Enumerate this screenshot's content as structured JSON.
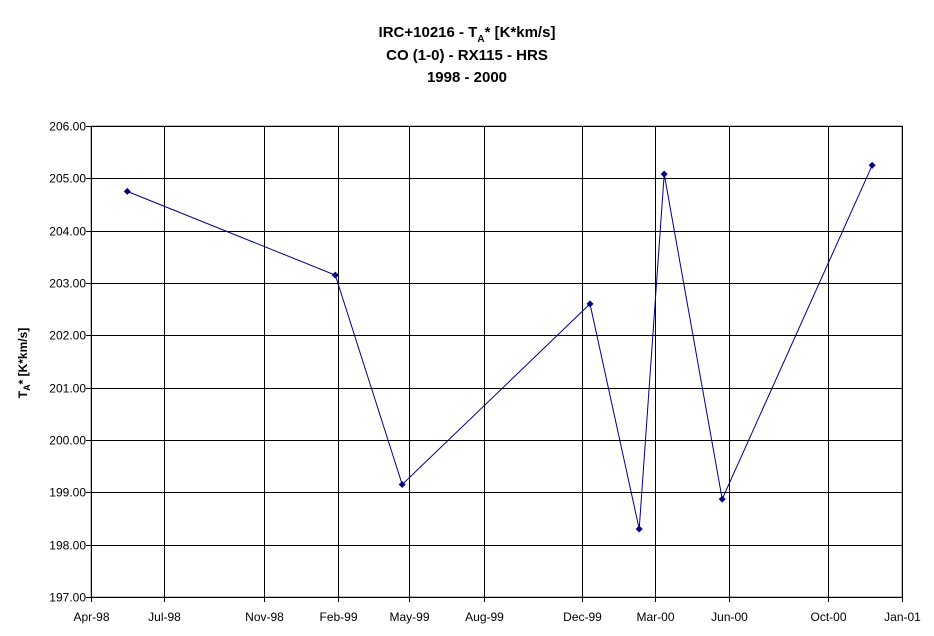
{
  "chart_data": {
    "type": "line",
    "title": [
      "IRC+10216 - T",
      "A",
      "* [K*km/s]"
    ],
    "subtitle": [
      "CO (1-0) - RX115 - HRS",
      "1998 - 2000"
    ],
    "ylabel": [
      "T",
      "A",
      "* [K*km/s]"
    ],
    "xlabel": "",
    "xlim": [
      "1998-04-01",
      "2001-01-01"
    ],
    "ylim": [
      197.0,
      206.0
    ],
    "x_ticks": [
      {
        "date": "1998-04-01",
        "label": "Apr-98"
      },
      {
        "date": "1998-07-01",
        "label": "Jul-98"
      },
      {
        "date": "1998-11-01",
        "label": "Nov-98"
      },
      {
        "date": "1999-02-01",
        "label": "Feb-99"
      },
      {
        "date": "1999-05-01",
        "label": "May-99"
      },
      {
        "date": "1999-08-01",
        "label": "Aug-99"
      },
      {
        "date": "1999-12-01",
        "label": "Dec-99"
      },
      {
        "date": "2000-03-01",
        "label": "Mar-00"
      },
      {
        "date": "2000-06-01",
        "label": "Jun-00"
      },
      {
        "date": "2000-10-01",
        "label": "Oct-00"
      },
      {
        "date": "2001-01-01",
        "label": "Jan-01"
      }
    ],
    "y_ticks": [
      197.0,
      198.0,
      199.0,
      200.0,
      201.0,
      202.0,
      203.0,
      204.0,
      205.0,
      206.0
    ],
    "y_tick_labels": [
      "197.00",
      "198.00",
      "199.00",
      "200.00",
      "201.00",
      "202.00",
      "203.00",
      "204.00",
      "205.00",
      "206.00"
    ],
    "grid": true,
    "legend": "none",
    "series": [
      {
        "color": "#000080",
        "marker": "diamond",
        "points": [
          {
            "x": "1998-05-16",
            "y": 204.75
          },
          {
            "x": "1999-01-29",
            "y": 203.15
          },
          {
            "x": "1999-04-22",
            "y": 199.15
          },
          {
            "x": "1999-12-11",
            "y": 202.6
          },
          {
            "x": "2000-02-10",
            "y": 198.3
          },
          {
            "x": "2000-03-12",
            "y": 205.08
          },
          {
            "x": "2000-05-23",
            "y": 198.87
          },
          {
            "x": "2000-11-25",
            "y": 205.25
          }
        ]
      }
    ]
  }
}
